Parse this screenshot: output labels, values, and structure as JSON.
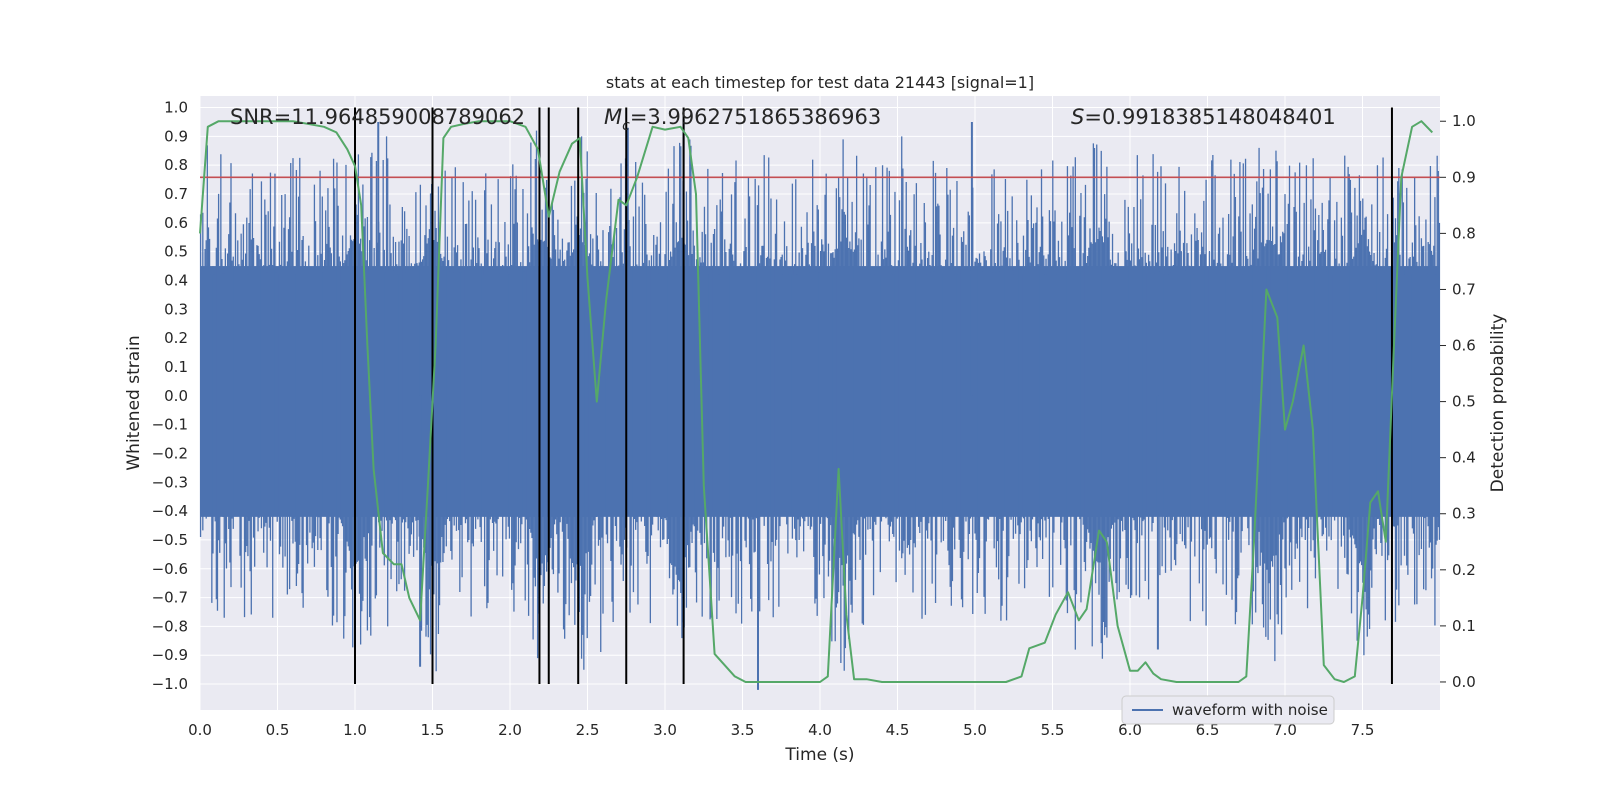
{
  "chart_data": {
    "type": "line",
    "title": "stats at each timestep for test data 21443 [signal=1]",
    "xlabel": "Time (s)",
    "ylabel_left": "Whitened strain",
    "ylabel_right": "Detection probability",
    "xlim": [
      0.0,
      8.0
    ],
    "ylim_left": [
      -1.09,
      1.04
    ],
    "ylim_right": [
      -0.05,
      1.045
    ],
    "x_ticks": [
      0.0,
      0.5,
      1.0,
      1.5,
      2.0,
      2.5,
      3.0,
      3.5,
      4.0,
      4.5,
      5.0,
      5.5,
      6.0,
      6.5,
      7.0,
      7.5
    ],
    "x_tick_labels": [
      "0.0",
      "0.5",
      "1.0",
      "1.5",
      "2.0",
      "2.5",
      "3.0",
      "3.5",
      "4.0",
      "4.5",
      "5.0",
      "5.5",
      "6.0",
      "6.5",
      "7.0",
      "7.5"
    ],
    "y_ticks_left": [
      1.0,
      0.9,
      0.8,
      0.7,
      0.6,
      0.5,
      0.4,
      0.3,
      0.2,
      0.1,
      0.0,
      -0.1,
      -0.2,
      -0.3,
      -0.4,
      -0.5,
      -0.6,
      -0.7,
      -0.8,
      -0.9,
      -1.0
    ],
    "y_tick_labels_left": [
      "1.0",
      "0.9",
      "0.8",
      "0.7",
      "0.6",
      "0.5",
      "0.4",
      "0.3",
      "0.2",
      "0.1",
      "0.0",
      "−0.1",
      "−0.2",
      "−0.3",
      "−0.4",
      "−0.5",
      "−0.6",
      "−0.7",
      "−0.8",
      "−0.9",
      "−1.0"
    ],
    "y_ticks_right": [
      1.0,
      0.9,
      0.8,
      0.7,
      0.6,
      0.5,
      0.4,
      0.3,
      0.2,
      0.1,
      0.0
    ],
    "y_tick_labels_right": [
      "1.0",
      "0.9",
      "0.8",
      "0.7",
      "0.6",
      "0.5",
      "0.4",
      "0.3",
      "0.2",
      "0.1",
      "0.0"
    ],
    "threshold": {
      "value": 0.9,
      "axis": "right",
      "color": "#c44e52"
    },
    "detection_lines_x": [
      1.0,
      1.5,
      2.19,
      2.25,
      2.44,
      2.75,
      3.12,
      7.69
    ],
    "detection_lines_ylim": [
      -1.0,
      1.0
    ],
    "waveform": {
      "name": "waveform with noise",
      "color": "#4c72b0",
      "core_band": [
        -0.42,
        0.45
      ],
      "bursts_x": [
        1.0,
        1.5,
        2.2,
        2.45,
        3.1,
        4.15,
        5.8,
        6.9,
        7.5
      ],
      "notable_peaks": [
        {
          "x": 1.15,
          "y": 0.95
        },
        {
          "x": 2.76,
          "y": 0.93
        },
        {
          "x": 3.12,
          "y": 0.96
        },
        {
          "x": 4.98,
          "y": 0.95
        },
        {
          "x": 1.42,
          "y": -0.94
        },
        {
          "x": 3.6,
          "y": -1.02
        },
        {
          "x": 6.18,
          "y": -0.88
        }
      ]
    },
    "probability": {
      "name": "detection probability",
      "color": "#55a868",
      "x": [
        0.0,
        0.05,
        0.12,
        0.2,
        0.4,
        0.6,
        0.8,
        0.88,
        0.95,
        1.0,
        1.04,
        1.08,
        1.12,
        1.18,
        1.25,
        1.3,
        1.35,
        1.42,
        1.47,
        1.52,
        1.57,
        1.62,
        1.7,
        1.8,
        1.9,
        2.0,
        2.1,
        2.18,
        2.25,
        2.32,
        2.4,
        2.45,
        2.5,
        2.56,
        2.62,
        2.7,
        2.75,
        2.82,
        2.92,
        3.0,
        3.1,
        3.15,
        3.2,
        3.25,
        3.32,
        3.45,
        3.52,
        3.65,
        3.8,
        4.0,
        4.05,
        4.12,
        4.17,
        4.22,
        4.3,
        4.4,
        4.5,
        4.7,
        5.0,
        5.2,
        5.3,
        5.35,
        5.45,
        5.52,
        5.6,
        5.67,
        5.72,
        5.8,
        5.85,
        5.92,
        6.0,
        6.05,
        6.1,
        6.15,
        6.2,
        6.3,
        6.5,
        6.7,
        6.75,
        6.8,
        6.88,
        6.95,
        7.0,
        7.05,
        7.12,
        7.18,
        7.25,
        7.32,
        7.38,
        7.45,
        7.5,
        7.55,
        7.6,
        7.65,
        7.7,
        7.75,
        7.82,
        7.88,
        7.95
      ],
      "y": [
        0.8,
        0.99,
        1.0,
        1.0,
        1.0,
        1.0,
        0.99,
        0.98,
        0.95,
        0.92,
        0.85,
        0.6,
        0.38,
        0.23,
        0.21,
        0.21,
        0.15,
        0.11,
        0.35,
        0.6,
        0.97,
        0.99,
        0.995,
        1.0,
        1.0,
        1.0,
        0.99,
        0.95,
        0.83,
        0.91,
        0.96,
        0.97,
        0.72,
        0.5,
        0.68,
        0.86,
        0.85,
        0.9,
        0.99,
        0.985,
        0.99,
        0.97,
        0.87,
        0.35,
        0.05,
        0.01,
        0.0,
        0.0,
        0.0,
        0.0,
        0.01,
        0.38,
        0.12,
        0.005,
        0.005,
        0.0,
        0.0,
        0.0,
        0.0,
        0.0,
        0.01,
        0.06,
        0.07,
        0.12,
        0.16,
        0.11,
        0.13,
        0.27,
        0.25,
        0.1,
        0.02,
        0.02,
        0.035,
        0.015,
        0.005,
        0.0,
        0.0,
        0.0,
        0.01,
        0.25,
        0.7,
        0.65,
        0.45,
        0.5,
        0.6,
        0.45,
        0.03,
        0.005,
        0.0,
        0.01,
        0.15,
        0.32,
        0.34,
        0.25,
        0.58,
        0.9,
        0.99,
        1.0,
        0.98
      ]
    },
    "annotations": [
      {
        "x": 0.2,
        "label": "SNR=11.964859008789062"
      },
      {
        "x": 2.6,
        "symbol": "M",
        "subscript": "c",
        "label": "=3.9962751865386963"
      },
      {
        "x": 5.6,
        "symbol": "S",
        "label": "=0.9918385148048401"
      }
    ],
    "legend": {
      "position": "lower-right",
      "entries": [
        "waveform with noise"
      ]
    },
    "grid": true
  }
}
